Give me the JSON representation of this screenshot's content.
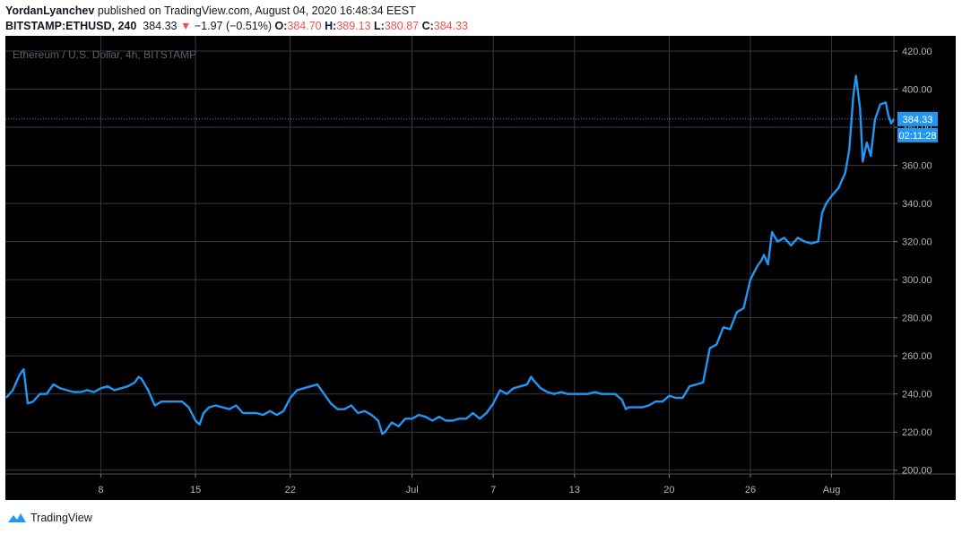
{
  "header": {
    "author": "YordanLyanchev",
    "published_text": "published on TradingView.com, August 04, 2020 16:48:34 EEST",
    "symbol": "BITSTAMP:ETHUSD, 240",
    "last": "384.33",
    "change_arrow": "▼",
    "change": "−1.97 (−0.51%)",
    "o_label": "O:",
    "o_value": "384.70",
    "h_label": "H:",
    "h_value": "389.13",
    "l_label": "L:",
    "l_value": "380.87",
    "c_label": "C:",
    "c_value": "384.33"
  },
  "footer": {
    "brand": "TradingView"
  },
  "colors": {
    "line": "#2196f3",
    "background": "#000000",
    "grid": "#363a45",
    "text": "#b2b5be",
    "label_bg": "#2196f3"
  },
  "chart_data": {
    "type": "line",
    "title": "Ethereum / U.S. Dollar, 4h, BITSTAMP",
    "ylim": [
      198,
      428
    ],
    "y_ticks": [
      "200.00",
      "220.00",
      "240.00",
      "260.00",
      "280.00",
      "300.00",
      "320.00",
      "340.00",
      "360.00",
      "380.00",
      "400.00",
      "420.00"
    ],
    "y_tick_values": [
      200,
      220,
      240,
      260,
      280,
      300,
      320,
      340,
      360,
      380,
      400,
      420
    ],
    "x_ticks": [
      "8",
      "15",
      "22",
      "Jul",
      "7",
      "13",
      "20",
      "26",
      "Aug"
    ],
    "x_tick_days": [
      8,
      15,
      22,
      31,
      37,
      43,
      50,
      56,
      62
    ],
    "x_range_days": [
      0.95,
      66.6
    ],
    "last_price_label": "384.33",
    "countdown_label": "02:11:28",
    "last_price": 384.33,
    "series": [
      {
        "points": [
          [
            1.0,
            238
          ],
          [
            1.5,
            242
          ],
          [
            2.0,
            250
          ],
          [
            2.3,
            253
          ],
          [
            2.6,
            235
          ],
          [
            3.0,
            236
          ],
          [
            3.5,
            240
          ],
          [
            4.0,
            240
          ],
          [
            4.5,
            245
          ],
          [
            5.0,
            243
          ],
          [
            5.5,
            242
          ],
          [
            6.0,
            241
          ],
          [
            6.5,
            241
          ],
          [
            7.0,
            242
          ],
          [
            7.5,
            241
          ],
          [
            8.0,
            243
          ],
          [
            8.5,
            244
          ],
          [
            9.0,
            242
          ],
          [
            9.5,
            243
          ],
          [
            10.0,
            244
          ],
          [
            10.5,
            246
          ],
          [
            10.8,
            249
          ],
          [
            11.0,
            248
          ],
          [
            11.5,
            242
          ],
          [
            11.8,
            237
          ],
          [
            12.0,
            234
          ],
          [
            12.5,
            236
          ],
          [
            13.0,
            236
          ],
          [
            13.5,
            236
          ],
          [
            14.0,
            236
          ],
          [
            14.5,
            233
          ],
          [
            15.0,
            226
          ],
          [
            15.3,
            224
          ],
          [
            15.6,
            230
          ],
          [
            16.0,
            233
          ],
          [
            16.5,
            234
          ],
          [
            17.0,
            233
          ],
          [
            17.5,
            232
          ],
          [
            18.0,
            234
          ],
          [
            18.5,
            230
          ],
          [
            19.0,
            230
          ],
          [
            19.5,
            230
          ],
          [
            20.0,
            229
          ],
          [
            20.5,
            231
          ],
          [
            21.0,
            229
          ],
          [
            21.5,
            231
          ],
          [
            22.0,
            238
          ],
          [
            22.5,
            242
          ],
          [
            23.0,
            243
          ],
          [
            23.5,
            244
          ],
          [
            24.0,
            245
          ],
          [
            24.5,
            240
          ],
          [
            25.0,
            235
          ],
          [
            25.5,
            232
          ],
          [
            26.0,
            232
          ],
          [
            26.5,
            234
          ],
          [
            27.0,
            230
          ],
          [
            27.5,
            231
          ],
          [
            28.0,
            229
          ],
          [
            28.5,
            226
          ],
          [
            28.8,
            219
          ],
          [
            29.0,
            220
          ],
          [
            29.5,
            225
          ],
          [
            30.0,
            223
          ],
          [
            30.5,
            227
          ],
          [
            31.0,
            227
          ],
          [
            31.5,
            229
          ],
          [
            32.0,
            228
          ],
          [
            32.5,
            226
          ],
          [
            33.0,
            228
          ],
          [
            33.5,
            226
          ],
          [
            34.0,
            226
          ],
          [
            34.5,
            227
          ],
          [
            35.0,
            227
          ],
          [
            35.5,
            230
          ],
          [
            36.0,
            227
          ],
          [
            36.5,
            230
          ],
          [
            37.0,
            235
          ],
          [
            37.5,
            242
          ],
          [
            38.0,
            240
          ],
          [
            38.5,
            243
          ],
          [
            39.0,
            244
          ],
          [
            39.5,
            245
          ],
          [
            39.8,
            249
          ],
          [
            40.0,
            247
          ],
          [
            40.5,
            243
          ],
          [
            41.0,
            241
          ],
          [
            41.5,
            240
          ],
          [
            42.0,
            241
          ],
          [
            42.5,
            240
          ],
          [
            43.0,
            240
          ],
          [
            43.5,
            240
          ],
          [
            44.0,
            240
          ],
          [
            44.5,
            241
          ],
          [
            45.0,
            240
          ],
          [
            45.5,
            240
          ],
          [
            46.0,
            240
          ],
          [
            46.5,
            237
          ],
          [
            46.8,
            232
          ],
          [
            47.0,
            233
          ],
          [
            47.5,
            233
          ],
          [
            48.0,
            233
          ],
          [
            48.5,
            234
          ],
          [
            49.0,
            236
          ],
          [
            49.5,
            236
          ],
          [
            50.0,
            239
          ],
          [
            50.5,
            238
          ],
          [
            51.0,
            238
          ],
          [
            51.5,
            244
          ],
          [
            52.0,
            245
          ],
          [
            52.5,
            246
          ],
          [
            53.0,
            264
          ],
          [
            53.5,
            266
          ],
          [
            54.0,
            275
          ],
          [
            54.5,
            274
          ],
          [
            55.0,
            283
          ],
          [
            55.5,
            285
          ],
          [
            56.0,
            300
          ],
          [
            56.5,
            307
          ],
          [
            56.8,
            310
          ],
          [
            57.0,
            313
          ],
          [
            57.3,
            308
          ],
          [
            57.6,
            325
          ],
          [
            58.0,
            320
          ],
          [
            58.5,
            322
          ],
          [
            59.0,
            318
          ],
          [
            59.5,
            322
          ],
          [
            60.0,
            320
          ],
          [
            60.5,
            319
          ],
          [
            61.0,
            320
          ],
          [
            61.3,
            335
          ],
          [
            61.6,
            340
          ],
          [
            62.0,
            344
          ],
          [
            62.5,
            348
          ],
          [
            63.0,
            356
          ],
          [
            63.3,
            368
          ],
          [
            63.6,
            396
          ],
          [
            63.8,
            407
          ],
          [
            64.1,
            390
          ],
          [
            64.3,
            362
          ],
          [
            64.6,
            372
          ],
          [
            64.9,
            365
          ],
          [
            65.2,
            384
          ],
          [
            65.6,
            392
          ],
          [
            66.0,
            393
          ],
          [
            66.2,
            386
          ],
          [
            66.4,
            382
          ],
          [
            66.6,
            384.33
          ]
        ]
      }
    ]
  }
}
